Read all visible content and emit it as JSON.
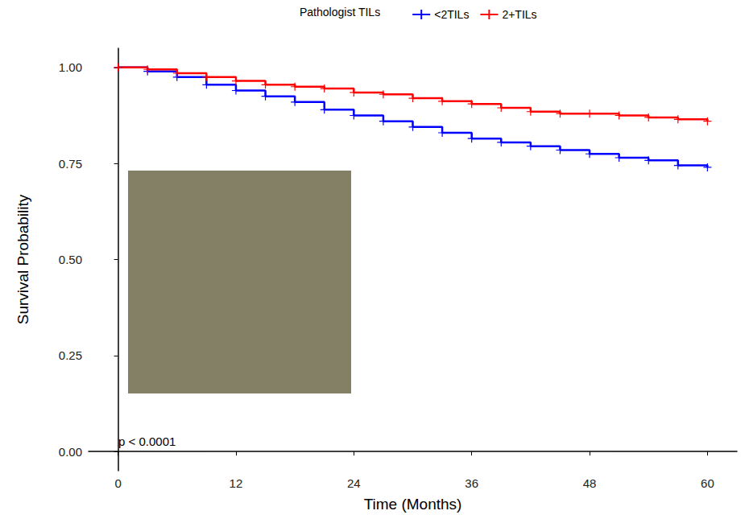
{
  "chart_data": {
    "type": "line",
    "legend_title": "Pathologist TILs",
    "x_label": "Time (Months)",
    "y_label": "Survival Probability",
    "annotations": [
      "p < 0.0001"
    ],
    "xlim": [
      -3,
      63
    ],
    "xticks": [
      0,
      12,
      24,
      36,
      48,
      60
    ],
    "ylim": [
      -0.05,
      1.05
    ],
    "yticks": [
      {
        "value": 0,
        "label": "0.00"
      },
      {
        "value": 0.25,
        "label": "0.25"
      },
      {
        "value": 0.5,
        "label": "0.50"
      },
      {
        "value": 0.75,
        "label": "0.75"
      },
      {
        "value": 1,
        "label": "1.00"
      }
    ],
    "grid": false,
    "legend": "top",
    "marker": "+",
    "line_style": "step",
    "x": [
      0,
      3,
      6,
      9,
      12,
      15,
      18,
      21,
      24,
      27,
      30,
      33,
      36,
      39,
      42,
      45,
      48,
      51,
      54,
      57,
      60
    ],
    "series": [
      {
        "name": "<2TILs",
        "color": "#0000ff",
        "values": [
          1.0,
          0.99,
          0.975,
          0.955,
          0.94,
          0.925,
          0.91,
          0.89,
          0.875,
          0.86,
          0.845,
          0.83,
          0.815,
          0.805,
          0.795,
          0.785,
          0.775,
          0.765,
          0.758,
          0.745,
          0.74
        ]
      },
      {
        "name": "2+TILs",
        "color": "#ff0000",
        "values": [
          1.0,
          0.995,
          0.985,
          0.975,
          0.965,
          0.955,
          0.95,
          0.945,
          0.935,
          0.93,
          0.92,
          0.912,
          0.905,
          0.895,
          0.885,
          0.88,
          0.88,
          0.875,
          0.87,
          0.865,
          0.86
        ]
      }
    ]
  }
}
